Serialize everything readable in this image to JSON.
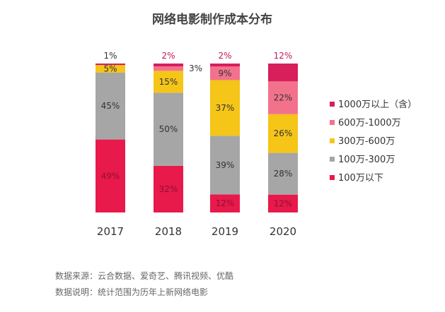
{
  "chart_data": {
    "type": "bar",
    "stacked": true,
    "percent": true,
    "title": "网络电影制作成本分布",
    "categories": [
      "2017",
      "2018",
      "2019",
      "2020"
    ],
    "series": [
      {
        "name": "100万以下",
        "color": "#E8194B",
        "values": [
          49,
          32,
          12,
          12
        ],
        "labels": [
          "49%",
          "32%",
          "12%",
          "12%"
        ]
      },
      {
        "name": "100万-300万",
        "color": "#A6A6A6",
        "values": [
          45,
          50,
          39,
          28
        ],
        "labels": [
          "45%",
          "50%",
          "39%",
          "28%"
        ]
      },
      {
        "name": "300万-600万",
        "color": "#F5C518",
        "values": [
          5,
          15,
          37,
          26
        ],
        "labels": [
          "5%",
          "15%",
          "37%",
          "26%"
        ]
      },
      {
        "name": "600万-1000万",
        "color": "#F2728C",
        "values": [
          0,
          3,
          9,
          22
        ],
        "labels": [
          "",
          "3%",
          "9%",
          "22%"
        ]
      },
      {
        "name": "1000万以上（含）",
        "color": "#D81E5B",
        "values": [
          1,
          2,
          2,
          12
        ],
        "labels": [
          "1%",
          "2%",
          "2%",
          "12%"
        ]
      }
    ],
    "legend_position": "right",
    "ylim": [
      0,
      100
    ],
    "grid": false
  },
  "footer": {
    "source": "数据来源：云合数据、爱奇艺、腾讯视频、优酷",
    "note": "数据说明：统计范围为历年上新网络电影"
  }
}
